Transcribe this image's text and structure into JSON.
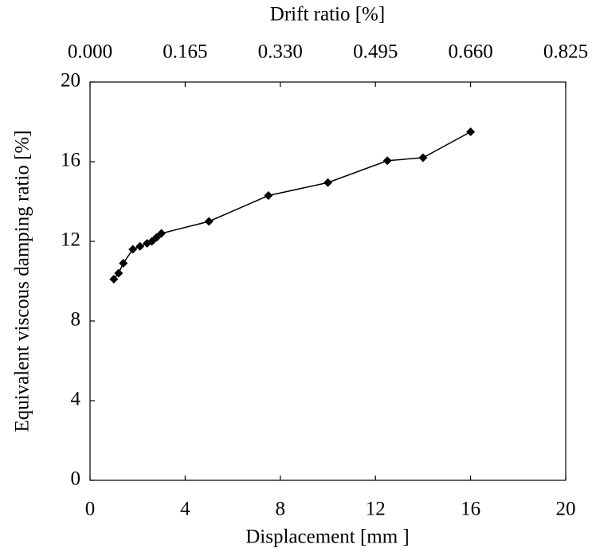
{
  "chart_data": {
    "type": "line",
    "x_label": "Displacement [mm ]",
    "y_label": "Equivalent viscous damping ratio [%]",
    "x2_label": "Drift ratio [%]",
    "x": [
      1.0,
      1.2,
      1.4,
      1.8,
      2.1,
      2.4,
      2.6,
      2.8,
      3.0,
      5.0,
      7.5,
      10.0,
      12.5,
      14.0,
      16.0
    ],
    "values": [
      10.1,
      10.4,
      10.9,
      11.6,
      11.75,
      11.9,
      12.0,
      12.2,
      12.4,
      13.0,
      14.3,
      14.95,
      16.05,
      16.2,
      17.5
    ],
    "color": "#000000",
    "xlim": [
      0,
      20
    ],
    "xticks": [
      0,
      4,
      8,
      12,
      16,
      20
    ],
    "ylim": [
      0,
      20
    ],
    "yticks": [
      0,
      4,
      8,
      12,
      16,
      20
    ],
    "x2lim": [
      0,
      0.825
    ],
    "x2ticks": [
      {
        "value": 0,
        "label": "0.000"
      },
      {
        "value": 0.165,
        "label": "0.165"
      },
      {
        "value": 0.33,
        "label": "0.330"
      },
      {
        "value": 0.495,
        "label": "0.495"
      },
      {
        "value": 0.66,
        "label": "0.660"
      },
      {
        "value": 0.825,
        "label": "0.825"
      }
    ],
    "grid": false
  }
}
